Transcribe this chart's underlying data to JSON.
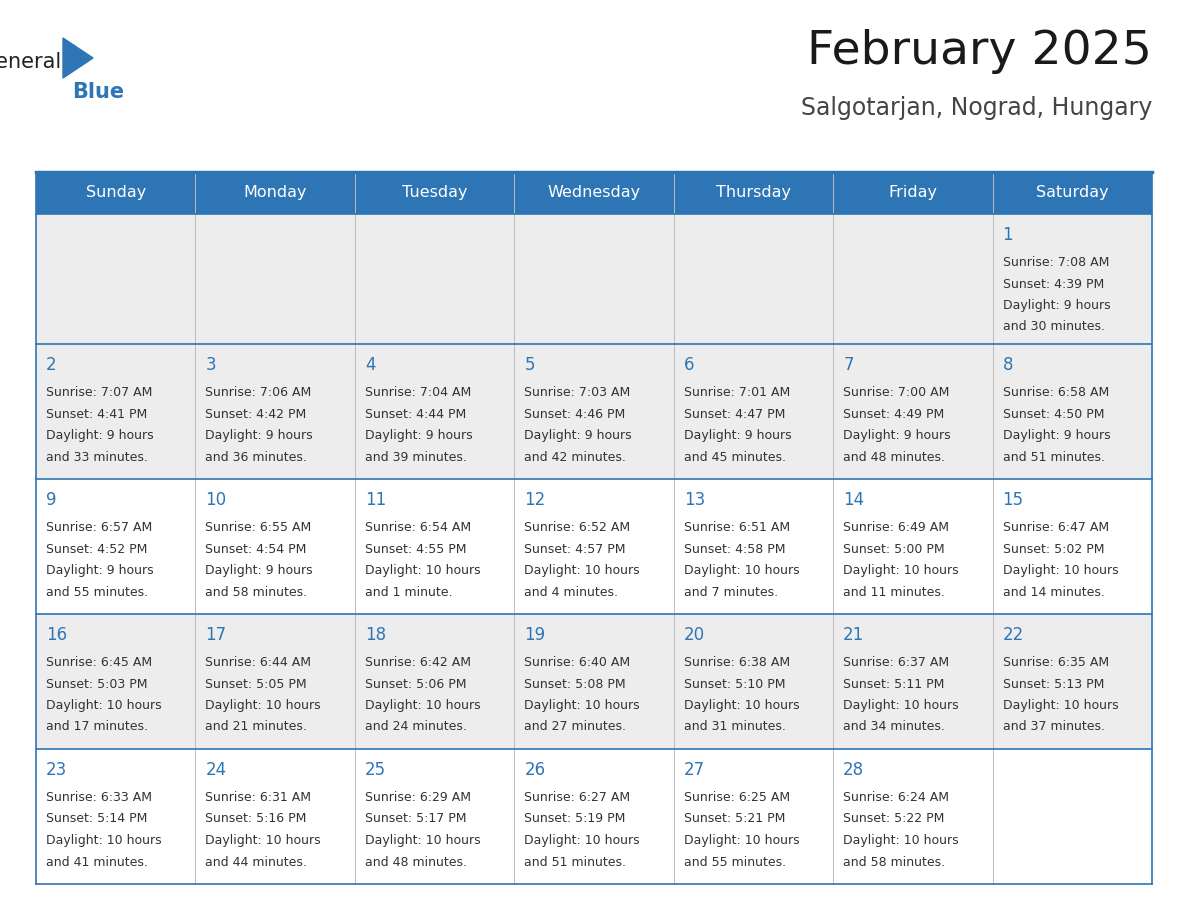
{
  "title": "February 2025",
  "subtitle": "Salgotarjan, Nograd, Hungary",
  "header_bg": "#2E75B6",
  "header_text": "#FFFFFF",
  "row_bg_gray": "#EDEDED",
  "row_bg_white": "#FFFFFF",
  "grid_line_color": "#2E75B6",
  "day_number_color": "#2E75B6",
  "text_color": "#333333",
  "days_of_week": [
    "Sunday",
    "Monday",
    "Tuesday",
    "Wednesday",
    "Thursday",
    "Friday",
    "Saturday"
  ],
  "calendar": [
    [
      null,
      null,
      null,
      null,
      null,
      null,
      {
        "day": 1,
        "sunrise": "7:08 AM",
        "sunset": "4:39 PM",
        "daylight_line1": "Daylight: 9 hours",
        "daylight_line2": "and 30 minutes."
      }
    ],
    [
      {
        "day": 2,
        "sunrise": "7:07 AM",
        "sunset": "4:41 PM",
        "daylight_line1": "Daylight: 9 hours",
        "daylight_line2": "and 33 minutes."
      },
      {
        "day": 3,
        "sunrise": "7:06 AM",
        "sunset": "4:42 PM",
        "daylight_line1": "Daylight: 9 hours",
        "daylight_line2": "and 36 minutes."
      },
      {
        "day": 4,
        "sunrise": "7:04 AM",
        "sunset": "4:44 PM",
        "daylight_line1": "Daylight: 9 hours",
        "daylight_line2": "and 39 minutes."
      },
      {
        "day": 5,
        "sunrise": "7:03 AM",
        "sunset": "4:46 PM",
        "daylight_line1": "Daylight: 9 hours",
        "daylight_line2": "and 42 minutes."
      },
      {
        "day": 6,
        "sunrise": "7:01 AM",
        "sunset": "4:47 PM",
        "daylight_line1": "Daylight: 9 hours",
        "daylight_line2": "and 45 minutes."
      },
      {
        "day": 7,
        "sunrise": "7:00 AM",
        "sunset": "4:49 PM",
        "daylight_line1": "Daylight: 9 hours",
        "daylight_line2": "and 48 minutes."
      },
      {
        "day": 8,
        "sunrise": "6:58 AM",
        "sunset": "4:50 PM",
        "daylight_line1": "Daylight: 9 hours",
        "daylight_line2": "and 51 minutes."
      }
    ],
    [
      {
        "day": 9,
        "sunrise": "6:57 AM",
        "sunset": "4:52 PM",
        "daylight_line1": "Daylight: 9 hours",
        "daylight_line2": "and 55 minutes."
      },
      {
        "day": 10,
        "sunrise": "6:55 AM",
        "sunset": "4:54 PM",
        "daylight_line1": "Daylight: 9 hours",
        "daylight_line2": "and 58 minutes."
      },
      {
        "day": 11,
        "sunrise": "6:54 AM",
        "sunset": "4:55 PM",
        "daylight_line1": "Daylight: 10 hours",
        "daylight_line2": "and 1 minute."
      },
      {
        "day": 12,
        "sunrise": "6:52 AM",
        "sunset": "4:57 PM",
        "daylight_line1": "Daylight: 10 hours",
        "daylight_line2": "and 4 minutes."
      },
      {
        "day": 13,
        "sunrise": "6:51 AM",
        "sunset": "4:58 PM",
        "daylight_line1": "Daylight: 10 hours",
        "daylight_line2": "and 7 minutes."
      },
      {
        "day": 14,
        "sunrise": "6:49 AM",
        "sunset": "5:00 PM",
        "daylight_line1": "Daylight: 10 hours",
        "daylight_line2": "and 11 minutes."
      },
      {
        "day": 15,
        "sunrise": "6:47 AM",
        "sunset": "5:02 PM",
        "daylight_line1": "Daylight: 10 hours",
        "daylight_line2": "and 14 minutes."
      }
    ],
    [
      {
        "day": 16,
        "sunrise": "6:45 AM",
        "sunset": "5:03 PM",
        "daylight_line1": "Daylight: 10 hours",
        "daylight_line2": "and 17 minutes."
      },
      {
        "day": 17,
        "sunrise": "6:44 AM",
        "sunset": "5:05 PM",
        "daylight_line1": "Daylight: 10 hours",
        "daylight_line2": "and 21 minutes."
      },
      {
        "day": 18,
        "sunrise": "6:42 AM",
        "sunset": "5:06 PM",
        "daylight_line1": "Daylight: 10 hours",
        "daylight_line2": "and 24 minutes."
      },
      {
        "day": 19,
        "sunrise": "6:40 AM",
        "sunset": "5:08 PM",
        "daylight_line1": "Daylight: 10 hours",
        "daylight_line2": "and 27 minutes."
      },
      {
        "day": 20,
        "sunrise": "6:38 AM",
        "sunset": "5:10 PM",
        "daylight_line1": "Daylight: 10 hours",
        "daylight_line2": "and 31 minutes."
      },
      {
        "day": 21,
        "sunrise": "6:37 AM",
        "sunset": "5:11 PM",
        "daylight_line1": "Daylight: 10 hours",
        "daylight_line2": "and 34 minutes."
      },
      {
        "day": 22,
        "sunrise": "6:35 AM",
        "sunset": "5:13 PM",
        "daylight_line1": "Daylight: 10 hours",
        "daylight_line2": "and 37 minutes."
      }
    ],
    [
      {
        "day": 23,
        "sunrise": "6:33 AM",
        "sunset": "5:14 PM",
        "daylight_line1": "Daylight: 10 hours",
        "daylight_line2": "and 41 minutes."
      },
      {
        "day": 24,
        "sunrise": "6:31 AM",
        "sunset": "5:16 PM",
        "daylight_line1": "Daylight: 10 hours",
        "daylight_line2": "and 44 minutes."
      },
      {
        "day": 25,
        "sunrise": "6:29 AM",
        "sunset": "5:17 PM",
        "daylight_line1": "Daylight: 10 hours",
        "daylight_line2": "and 48 minutes."
      },
      {
        "day": 26,
        "sunrise": "6:27 AM",
        "sunset": "5:19 PM",
        "daylight_line1": "Daylight: 10 hours",
        "daylight_line2": "and 51 minutes."
      },
      {
        "day": 27,
        "sunrise": "6:25 AM",
        "sunset": "5:21 PM",
        "daylight_line1": "Daylight: 10 hours",
        "daylight_line2": "and 55 minutes."
      },
      {
        "day": 28,
        "sunrise": "6:24 AM",
        "sunset": "5:22 PM",
        "daylight_line1": "Daylight: 10 hours",
        "daylight_line2": "and 58 minutes."
      },
      null
    ]
  ],
  "row_backgrounds": [
    "gray",
    "gray",
    "white",
    "gray",
    "white"
  ]
}
